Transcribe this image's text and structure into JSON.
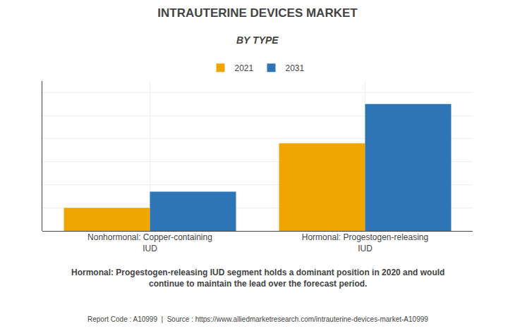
{
  "chart_data": {
    "type": "bar",
    "title": "INTRAUTERINE DEVICES MARKET",
    "subtitle": "BY TYPE",
    "categories": [
      "Nonhormonal: Copper-containing\nIUD",
      "Hormonal: Progestogen-releasing\nIUD"
    ],
    "series": [
      {
        "name": "2021",
        "color": "#F0A500",
        "values": [
          1,
          3.8
        ]
      },
      {
        "name": "2031",
        "color": "#2E75B6",
        "values": [
          1.7,
          5.5
        ]
      }
    ],
    "ylim": [
      0,
      6.5
    ],
    "yticks": [
      0,
      1,
      2,
      3,
      4,
      5,
      6
    ],
    "grid": true,
    "legend": "top",
    "tick_labels": "x",
    "annotations": [
      "Hormonal: Progestogen-releasing IUD segment holds a dominant position in 2020 and would\ncontinue to maintain the lead over the forecast period.",
      "Report Code : A10999  |  Source : https://www.alliedmarketresearch.com/intrauterine-devices-market-A10999"
    ]
  }
}
